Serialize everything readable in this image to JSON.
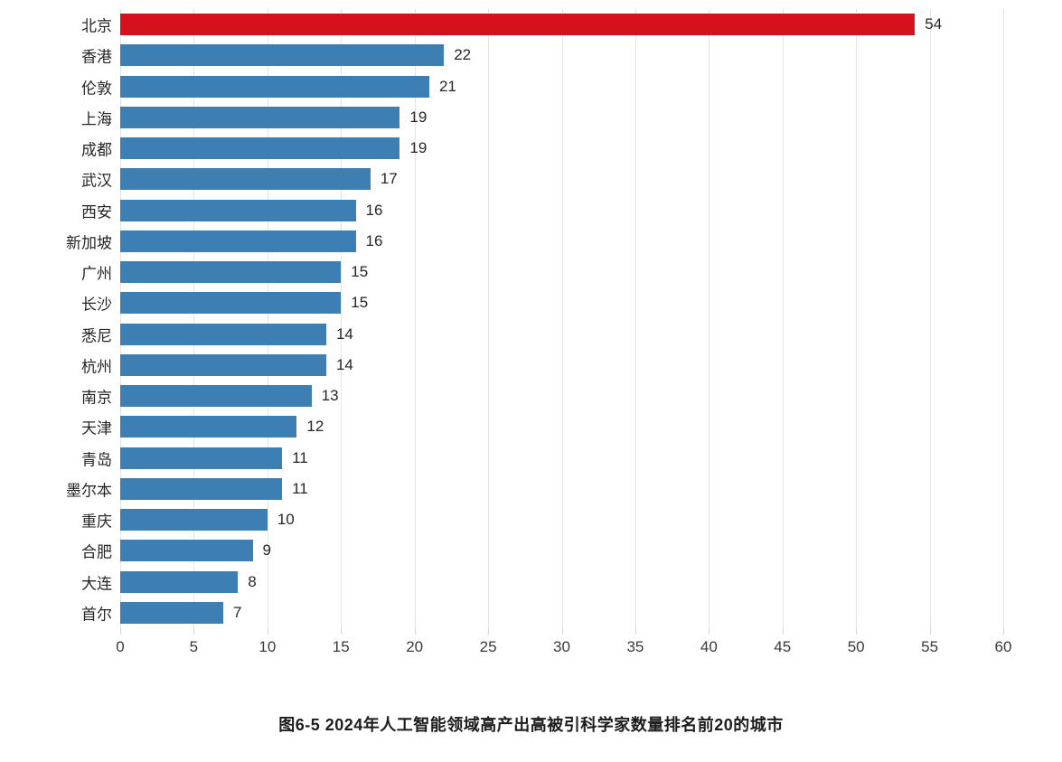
{
  "chart_data": {
    "type": "bar",
    "orientation": "horizontal",
    "categories": [
      "北京",
      "香港",
      "伦敦",
      "上海",
      "成都",
      "武汉",
      "西安",
      "新加坡",
      "广州",
      "长沙",
      "悉尼",
      "杭州",
      "南京",
      "天津",
      "青岛",
      "墨尔本",
      "重庆",
      "合肥",
      "大连",
      "首尔"
    ],
    "values": [
      54,
      22,
      21,
      19,
      19,
      17,
      16,
      16,
      15,
      15,
      14,
      14,
      13,
      12,
      11,
      11,
      10,
      9,
      8,
      7
    ],
    "highlight_index": 0,
    "highlight_color": "#d7101e",
    "bar_color": "#3d7eb3",
    "gridline_color": "#e4e4e4",
    "xlim": [
      0,
      60
    ],
    "x_ticks": [
      0,
      5,
      10,
      15,
      20,
      25,
      30,
      35,
      40,
      45,
      50,
      55,
      60
    ],
    "grid": true,
    "legend": false,
    "value_labels": true,
    "title": "",
    "xlabel": "",
    "ylabel": "",
    "caption": "图6-5 2024年人工智能领域高产出高被引科学家数量排名前20的城市"
  }
}
